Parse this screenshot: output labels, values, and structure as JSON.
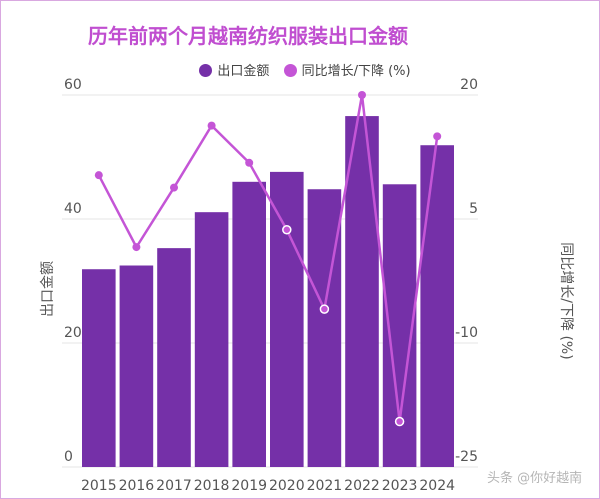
{
  "chart_data": {
    "type": "bar+line",
    "title": "历年前两个月越南纺织服装出口金额",
    "categories": [
      "2015",
      "2016",
      "2017",
      "2018",
      "2019",
      "2020",
      "2021",
      "2022",
      "2023",
      "2024"
    ],
    "series": [
      {
        "name": "出口金额",
        "type": "bar",
        "axis": "left",
        "color": "#7530a8",
        "values": [
          31.9,
          32.5,
          35.3,
          41.1,
          46.0,
          47.6,
          44.8,
          56.6,
          45.6,
          51.9
        ]
      },
      {
        "name": "同比增长/下降 (%)",
        "type": "line",
        "axis": "right",
        "color": "#c455d6",
        "values": [
          10.3,
          1.6,
          8.8,
          16.3,
          11.8,
          3.7,
          -5.9,
          20.0,
          -19.5,
          15.0
        ]
      }
    ],
    "ylabel": "出口金额",
    "y2label": "同比增长/下降 (%)",
    "ylim": [
      0,
      60
    ],
    "y2lim": [
      -25,
      20
    ],
    "yticks": [
      "0",
      "20",
      "40",
      "60"
    ],
    "y2ticks": [
      "-25",
      "-10",
      "5",
      "20"
    ],
    "grid": true,
    "legend": "top-center"
  },
  "watermark": "头条 @你好越南"
}
